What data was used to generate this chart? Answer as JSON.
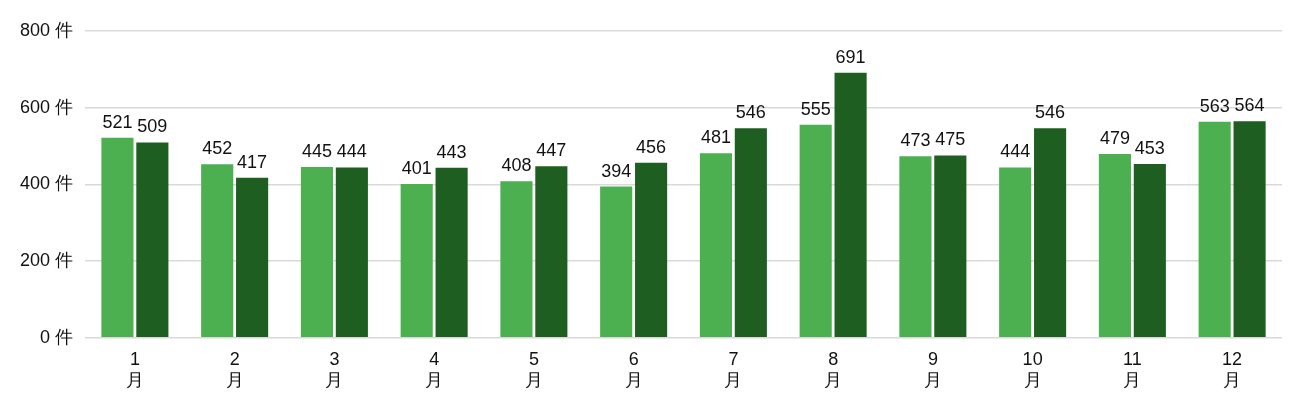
{
  "chart_data": {
    "type": "bar",
    "categories": [
      "1月",
      "2月",
      "3月",
      "4月",
      "5月",
      "6月",
      "7月",
      "8月",
      "9月",
      "10月",
      "11月",
      "12月"
    ],
    "series": [
      {
        "color": "#4caf50",
        "values": [
          521,
          452,
          445,
          401,
          408,
          394,
          481,
          555,
          473,
          444,
          479,
          563
        ]
      },
      {
        "color": "#1e5e20",
        "values": [
          509,
          417,
          444,
          443,
          447,
          456,
          546,
          691,
          475,
          546,
          453,
          564
        ]
      }
    ],
    "ylim": [
      0,
      800
    ],
    "yticks": [
      {
        "value": 0,
        "label": "0 件"
      },
      {
        "value": 200,
        "label": "200 件"
      },
      {
        "value": 400,
        "label": "400 件"
      },
      {
        "value": 600,
        "label": "600 件"
      },
      {
        "value": 800,
        "label": "800 件"
      }
    ],
    "grid": "y",
    "data_labels": true,
    "legend": false
  }
}
